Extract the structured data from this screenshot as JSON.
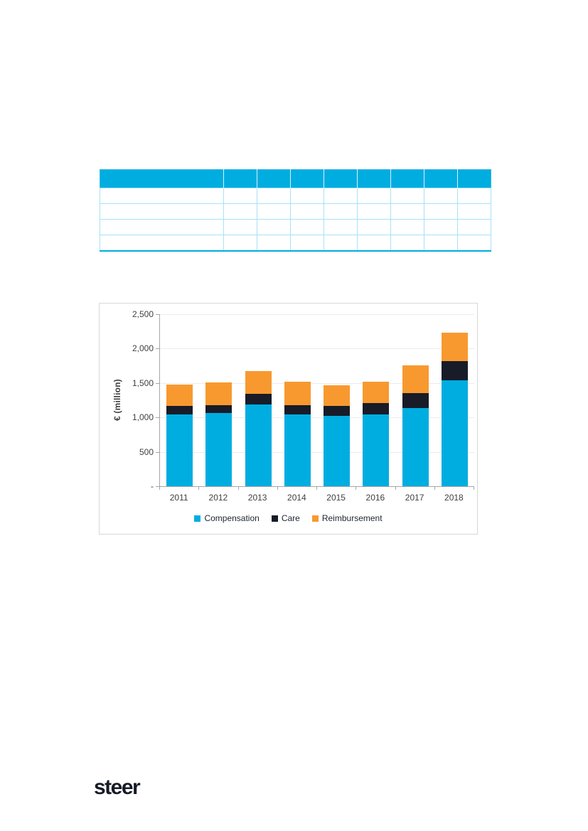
{
  "table": {
    "header_color": "#00ADE0",
    "columns": [
      "",
      "",
      "",
      "",
      "",
      "",
      "",
      "",
      ""
    ],
    "rows": [
      [
        "",
        "",
        "",
        "",
        "",
        "",
        "",
        "",
        ""
      ],
      [
        "",
        "",
        "",
        "",
        "",
        "",
        "",
        "",
        ""
      ],
      [
        "",
        "",
        "",
        "",
        "",
        "",
        "",
        "",
        ""
      ],
      [
        "",
        "",
        "",
        "",
        "",
        "",
        "",
        "",
        ""
      ]
    ]
  },
  "chart_data": {
    "type": "bar",
    "stacked": true,
    "title": "",
    "xlabel": "",
    "ylabel": "€ (million)",
    "categories": [
      "2011",
      "2012",
      "2013",
      "2014",
      "2015",
      "2016",
      "2017",
      "2018"
    ],
    "series": [
      {
        "name": "Compensation",
        "color": "#00ADE0",
        "values": [
          1045,
          1060,
          1185,
          1045,
          1020,
          1040,
          1135,
          1540
        ]
      },
      {
        "name": "Care",
        "color": "#171C28",
        "values": [
          120,
          120,
          155,
          135,
          150,
          165,
          215,
          275
        ]
      },
      {
        "name": "Reimbursement",
        "color": "#F8992F",
        "values": [
          315,
          325,
          335,
          335,
          300,
          310,
          410,
          420
        ]
      }
    ],
    "ylim": [
      0,
      2500
    ],
    "y_tick_values": [
      2500,
      2000,
      1500,
      1000,
      500,
      0
    ],
    "y_tick_labels": [
      "2,500",
      "2,000",
      "1,500",
      "1,000",
      "500",
      "-"
    ],
    "grid": true,
    "legend_position": "bottom"
  },
  "footer": {
    "logo_text": "steer"
  }
}
